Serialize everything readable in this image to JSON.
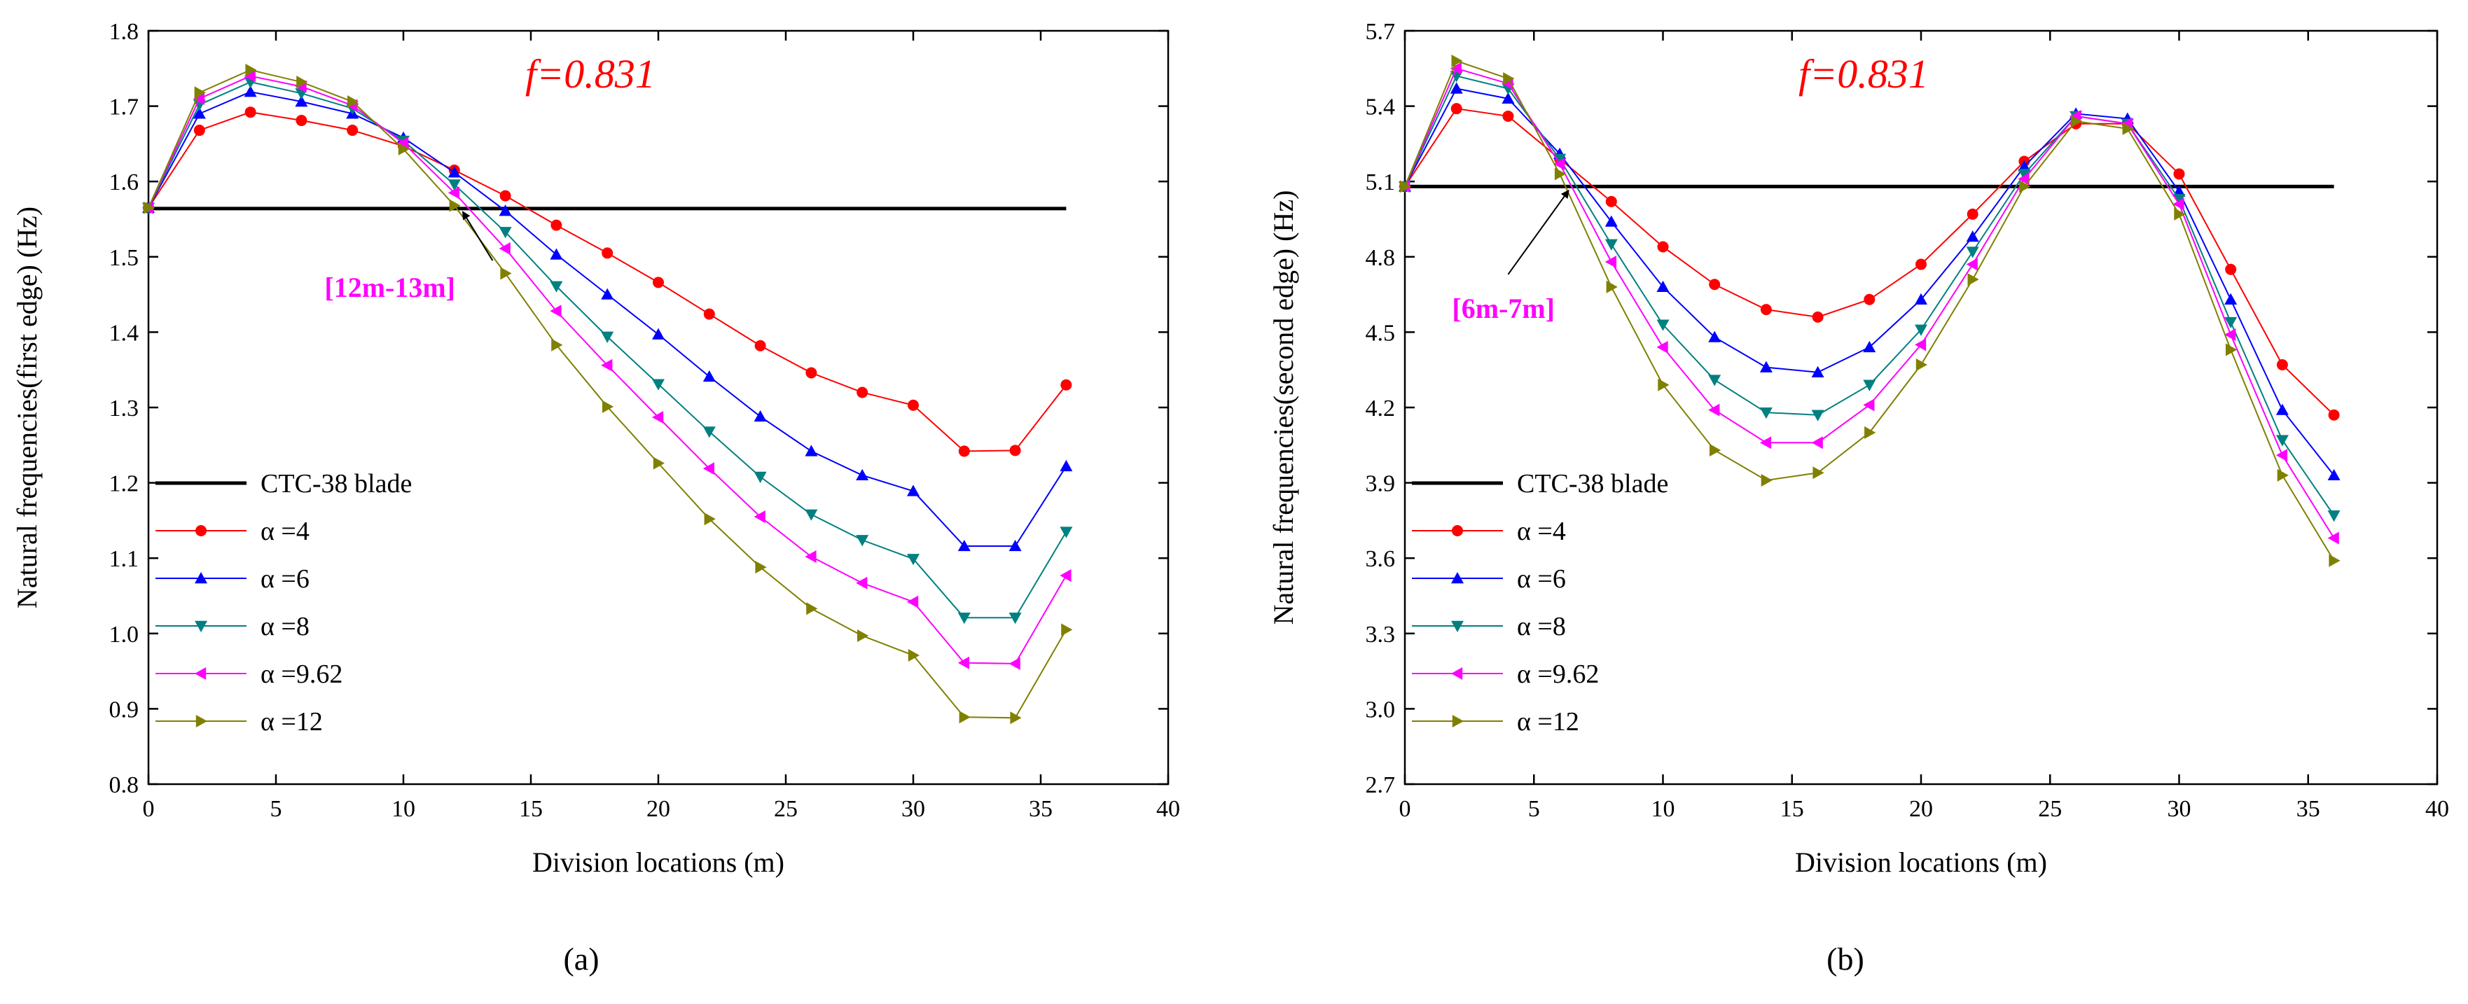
{
  "chart_data": [
    {
      "type": "line",
      "panel_label": "(a)",
      "xlabel": "Division locations (m)",
      "ylabel": "Natural frequencies(first edge) (Hz)",
      "xlim": [
        0,
        40
      ],
      "ylim": [
        0.8,
        1.8
      ],
      "xticks": [
        0,
        5,
        10,
        15,
        20,
        25,
        30,
        35,
        40
      ],
      "yticks": [
        0.8,
        0.9,
        1.0,
        1.1,
        1.2,
        1.3,
        1.4,
        1.5,
        1.6,
        1.7,
        1.8
      ],
      "ytick_labels": [
        "0.8",
        "0.9",
        "1.0",
        "1.1",
        "1.2",
        "1.3",
        "1.4",
        "1.5",
        "1.6",
        "1.7",
        "1.8"
      ],
      "annotation_f": "f=0.831",
      "annotation_range": "[12m-13m]",
      "annotation_range_color": "#ff00ff",
      "annotation_arrow_point": [
        12.5,
        1.565
      ],
      "annotation_arrow_text_pos": [
        13.5,
        1.495
      ],
      "reference": {
        "name": "CTC-38 blade",
        "value": 1.564,
        "x": [
          0,
          36
        ],
        "color": "#000000"
      },
      "x": [
        0,
        2,
        4,
        6,
        8,
        10,
        12,
        14,
        16,
        18,
        20,
        22,
        24,
        26,
        28,
        30,
        32,
        34,
        36
      ],
      "series": [
        {
          "name": "α =4",
          "color": "#ff0000",
          "marker": "circle",
          "values": [
            1.565,
            1.668,
            1.692,
            1.681,
            1.668,
            1.647,
            1.615,
            1.581,
            1.542,
            1.505,
            1.466,
            1.424,
            1.382,
            1.346,
            1.32,
            1.303,
            1.242,
            1.243,
            1.33
          ]
        },
        {
          "name": "α =6",
          "color": "#0000ff",
          "marker": "triangle-up",
          "values": [
            1.565,
            1.69,
            1.719,
            1.706,
            1.69,
            1.658,
            1.612,
            1.561,
            1.503,
            1.45,
            1.397,
            1.341,
            1.288,
            1.242,
            1.21,
            1.189,
            1.116,
            1.116,
            1.222
          ]
        },
        {
          "name": "α =8",
          "color": "#008080",
          "marker": "triangle-down",
          "values": [
            1.565,
            1.702,
            1.732,
            1.717,
            1.697,
            1.654,
            1.596,
            1.533,
            1.461,
            1.394,
            1.331,
            1.268,
            1.208,
            1.158,
            1.124,
            1.099,
            1.021,
            1.021,
            1.135
          ]
        },
        {
          "name": "α =9.62",
          "color": "#ff00ff",
          "marker": "triangle-left",
          "values": [
            1.565,
            1.71,
            1.74,
            1.726,
            1.701,
            1.651,
            1.585,
            1.511,
            1.428,
            1.356,
            1.287,
            1.219,
            1.155,
            1.102,
            1.067,
            1.042,
            0.961,
            0.96,
            1.077
          ]
        },
        {
          "name": "α =12",
          "color": "#808000",
          "marker": "triangle-right",
          "values": [
            1.565,
            1.718,
            1.748,
            1.732,
            1.706,
            1.643,
            1.568,
            1.478,
            1.383,
            1.301,
            1.226,
            1.152,
            1.088,
            1.033,
            0.997,
            0.971,
            0.889,
            0.888,
            1.005
          ]
        }
      ]
    },
    {
      "type": "line",
      "panel_label": "(b)",
      "xlabel": "Division locations (m)",
      "ylabel": "Natural frequencies(second edge) (Hz)",
      "xlim": [
        0,
        40
      ],
      "ylim": [
        2.7,
        5.7
      ],
      "xticks": [
        0,
        5,
        10,
        15,
        20,
        25,
        30,
        35,
        40
      ],
      "yticks": [
        2.7,
        3.0,
        3.3,
        3.6,
        3.9,
        4.2,
        4.5,
        4.8,
        5.1,
        5.4,
        5.7
      ],
      "ytick_labels": [
        "2.7",
        "3.0",
        "3.3",
        "3.6",
        "3.9",
        "4.2",
        "4.5",
        "4.8",
        "5.1",
        "5.4",
        "5.7"
      ],
      "annotation_f": "f=0.831",
      "annotation_range": "[6m-7m]",
      "annotation_range_color": "#ff00ff",
      "annotation_arrow_point": [
        6.5,
        5.08
      ],
      "annotation_arrow_text_pos": [
        4.0,
        4.73
      ],
      "reference": {
        "name": "CTC-38 blade",
        "value": 5.08,
        "x": [
          0,
          36
        ],
        "color": "#000000"
      },
      "x": [
        0,
        2,
        4,
        6,
        8,
        10,
        12,
        14,
        16,
        18,
        20,
        22,
        24,
        26,
        28,
        30,
        32,
        34,
        36
      ],
      "series": [
        {
          "name": "α =4",
          "color": "#ff0000",
          "marker": "circle",
          "values": [
            5.08,
            5.39,
            5.36,
            5.19,
            5.02,
            4.84,
            4.69,
            4.59,
            4.56,
            4.63,
            4.77,
            4.97,
            5.18,
            5.33,
            5.33,
            5.13,
            4.75,
            4.37,
            4.17
          ]
        },
        {
          "name": "α =6",
          "color": "#0000ff",
          "marker": "triangle-up",
          "values": [
            5.08,
            5.47,
            5.43,
            5.21,
            4.94,
            4.68,
            4.48,
            4.36,
            4.34,
            4.44,
            4.63,
            4.88,
            5.16,
            5.37,
            5.35,
            5.06,
            4.63,
            4.19,
            3.93
          ]
        },
        {
          "name": "α =8",
          "color": "#008080",
          "marker": "triangle-down",
          "values": [
            5.08,
            5.52,
            5.47,
            5.19,
            4.85,
            4.53,
            4.31,
            4.18,
            4.17,
            4.29,
            4.51,
            4.82,
            5.13,
            5.36,
            5.33,
            5.03,
            4.54,
            4.07,
            3.77
          ]
        },
        {
          "name": "α =9.62",
          "color": "#ff00ff",
          "marker": "triangle-left",
          "values": [
            5.08,
            5.55,
            5.49,
            5.17,
            4.78,
            4.44,
            4.19,
            4.06,
            4.06,
            4.21,
            4.45,
            4.77,
            5.11,
            5.36,
            5.33,
            5.01,
            4.49,
            4.01,
            3.68
          ]
        },
        {
          "name": "α =12",
          "color": "#808000",
          "marker": "triangle-right",
          "values": [
            5.08,
            5.58,
            5.51,
            5.13,
            4.68,
            4.29,
            4.03,
            3.91,
            3.94,
            4.1,
            4.37,
            4.71,
            5.08,
            5.34,
            5.31,
            4.97,
            4.43,
            3.93,
            3.59
          ]
        }
      ]
    }
  ]
}
